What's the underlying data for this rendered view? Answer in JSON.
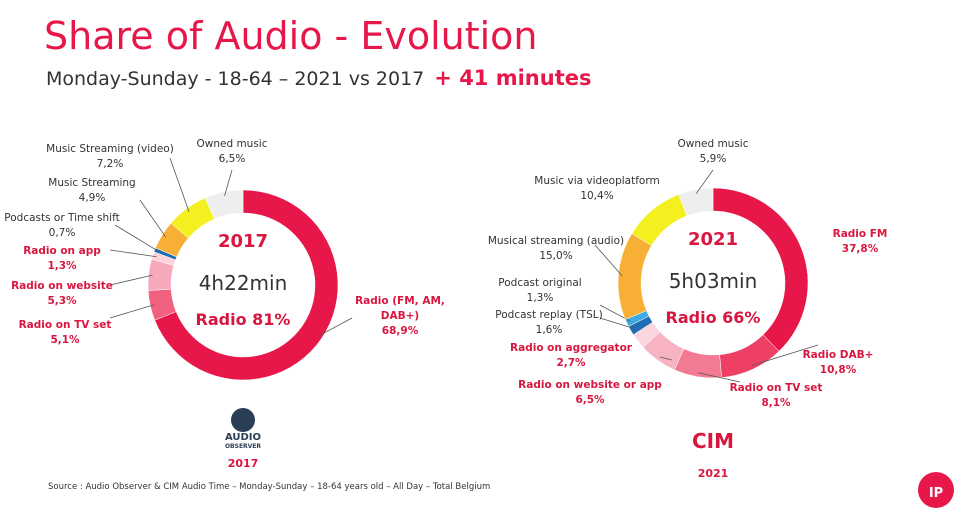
{
  "title": "Share of Audio - Evolution",
  "subtitle": "Monday-Sunday - 18-64 – 2021 vs 2017",
  "highlight": "+ 41 minutes",
  "source": "Source : Audio Observer & CIM Audio Time – Monday-Sunday – 18-64 years old – All Day –  Total Belgium",
  "brand": "IP",
  "chart_data": [
    {
      "type": "pie",
      "donut": true,
      "center_title": "2017",
      "center_value": "4h22min",
      "center_note": "Radio 81%",
      "categories": [
        "Radio (FM, AM, DAB+)",
        "Radio on TV set",
        "Radio on website",
        "Radio on app",
        "Podcasts or Time shift",
        "Music Streaming",
        "Music Streaming (video)",
        "Owned music"
      ],
      "values": [
        68.9,
        5.1,
        5.3,
        1.3,
        0.7,
        4.9,
        7.2,
        6.5
      ],
      "value_labels": [
        "68,9%",
        "5,1%",
        "5,3%",
        "1,3%",
        "0,7%",
        "4,9%",
        "7,2%",
        "6,5%"
      ],
      "colors": [
        "#e8174a",
        "#f0607f",
        "#f6a9bb",
        "#fad3dc",
        "#1f6db3",
        "#f7b035",
        "#f4ef1f",
        "#eeeeee"
      ],
      "logo": [
        "AUDIO",
        "OBSERVER"
      ],
      "logo_year": "2017"
    },
    {
      "type": "pie",
      "donut": true,
      "center_title": "2021",
      "center_value": "5h03min",
      "center_note": "Radio 66%",
      "categories": [
        "Radio FM",
        "Radio DAB+",
        "Radio on TV set",
        "Radio on website or app",
        "Radio on aggregator",
        "Podcast replay (TSL)",
        "Podcast original",
        "Musical streaming (audio)",
        "Music via videoplatform",
        "Owned music"
      ],
      "values": [
        37.8,
        10.8,
        8.1,
        6.5,
        2.7,
        1.6,
        1.3,
        15.0,
        10.4,
        5.9
      ],
      "value_labels": [
        "37,8%",
        "10,8%",
        "8,1%",
        "6,5%",
        "2,7%",
        "1,6%",
        "1,3%",
        "15,0%",
        "10,4%",
        "5,9%"
      ],
      "colors": [
        "#e8174a",
        "#ee4065",
        "#f27a93",
        "#f7b3c2",
        "#fad6de",
        "#1f6db3",
        "#3fa9e0",
        "#f7b035",
        "#f4ef1f",
        "#eeeeee"
      ],
      "logo": [
        "CIM"
      ],
      "logo_year": "2021"
    }
  ]
}
